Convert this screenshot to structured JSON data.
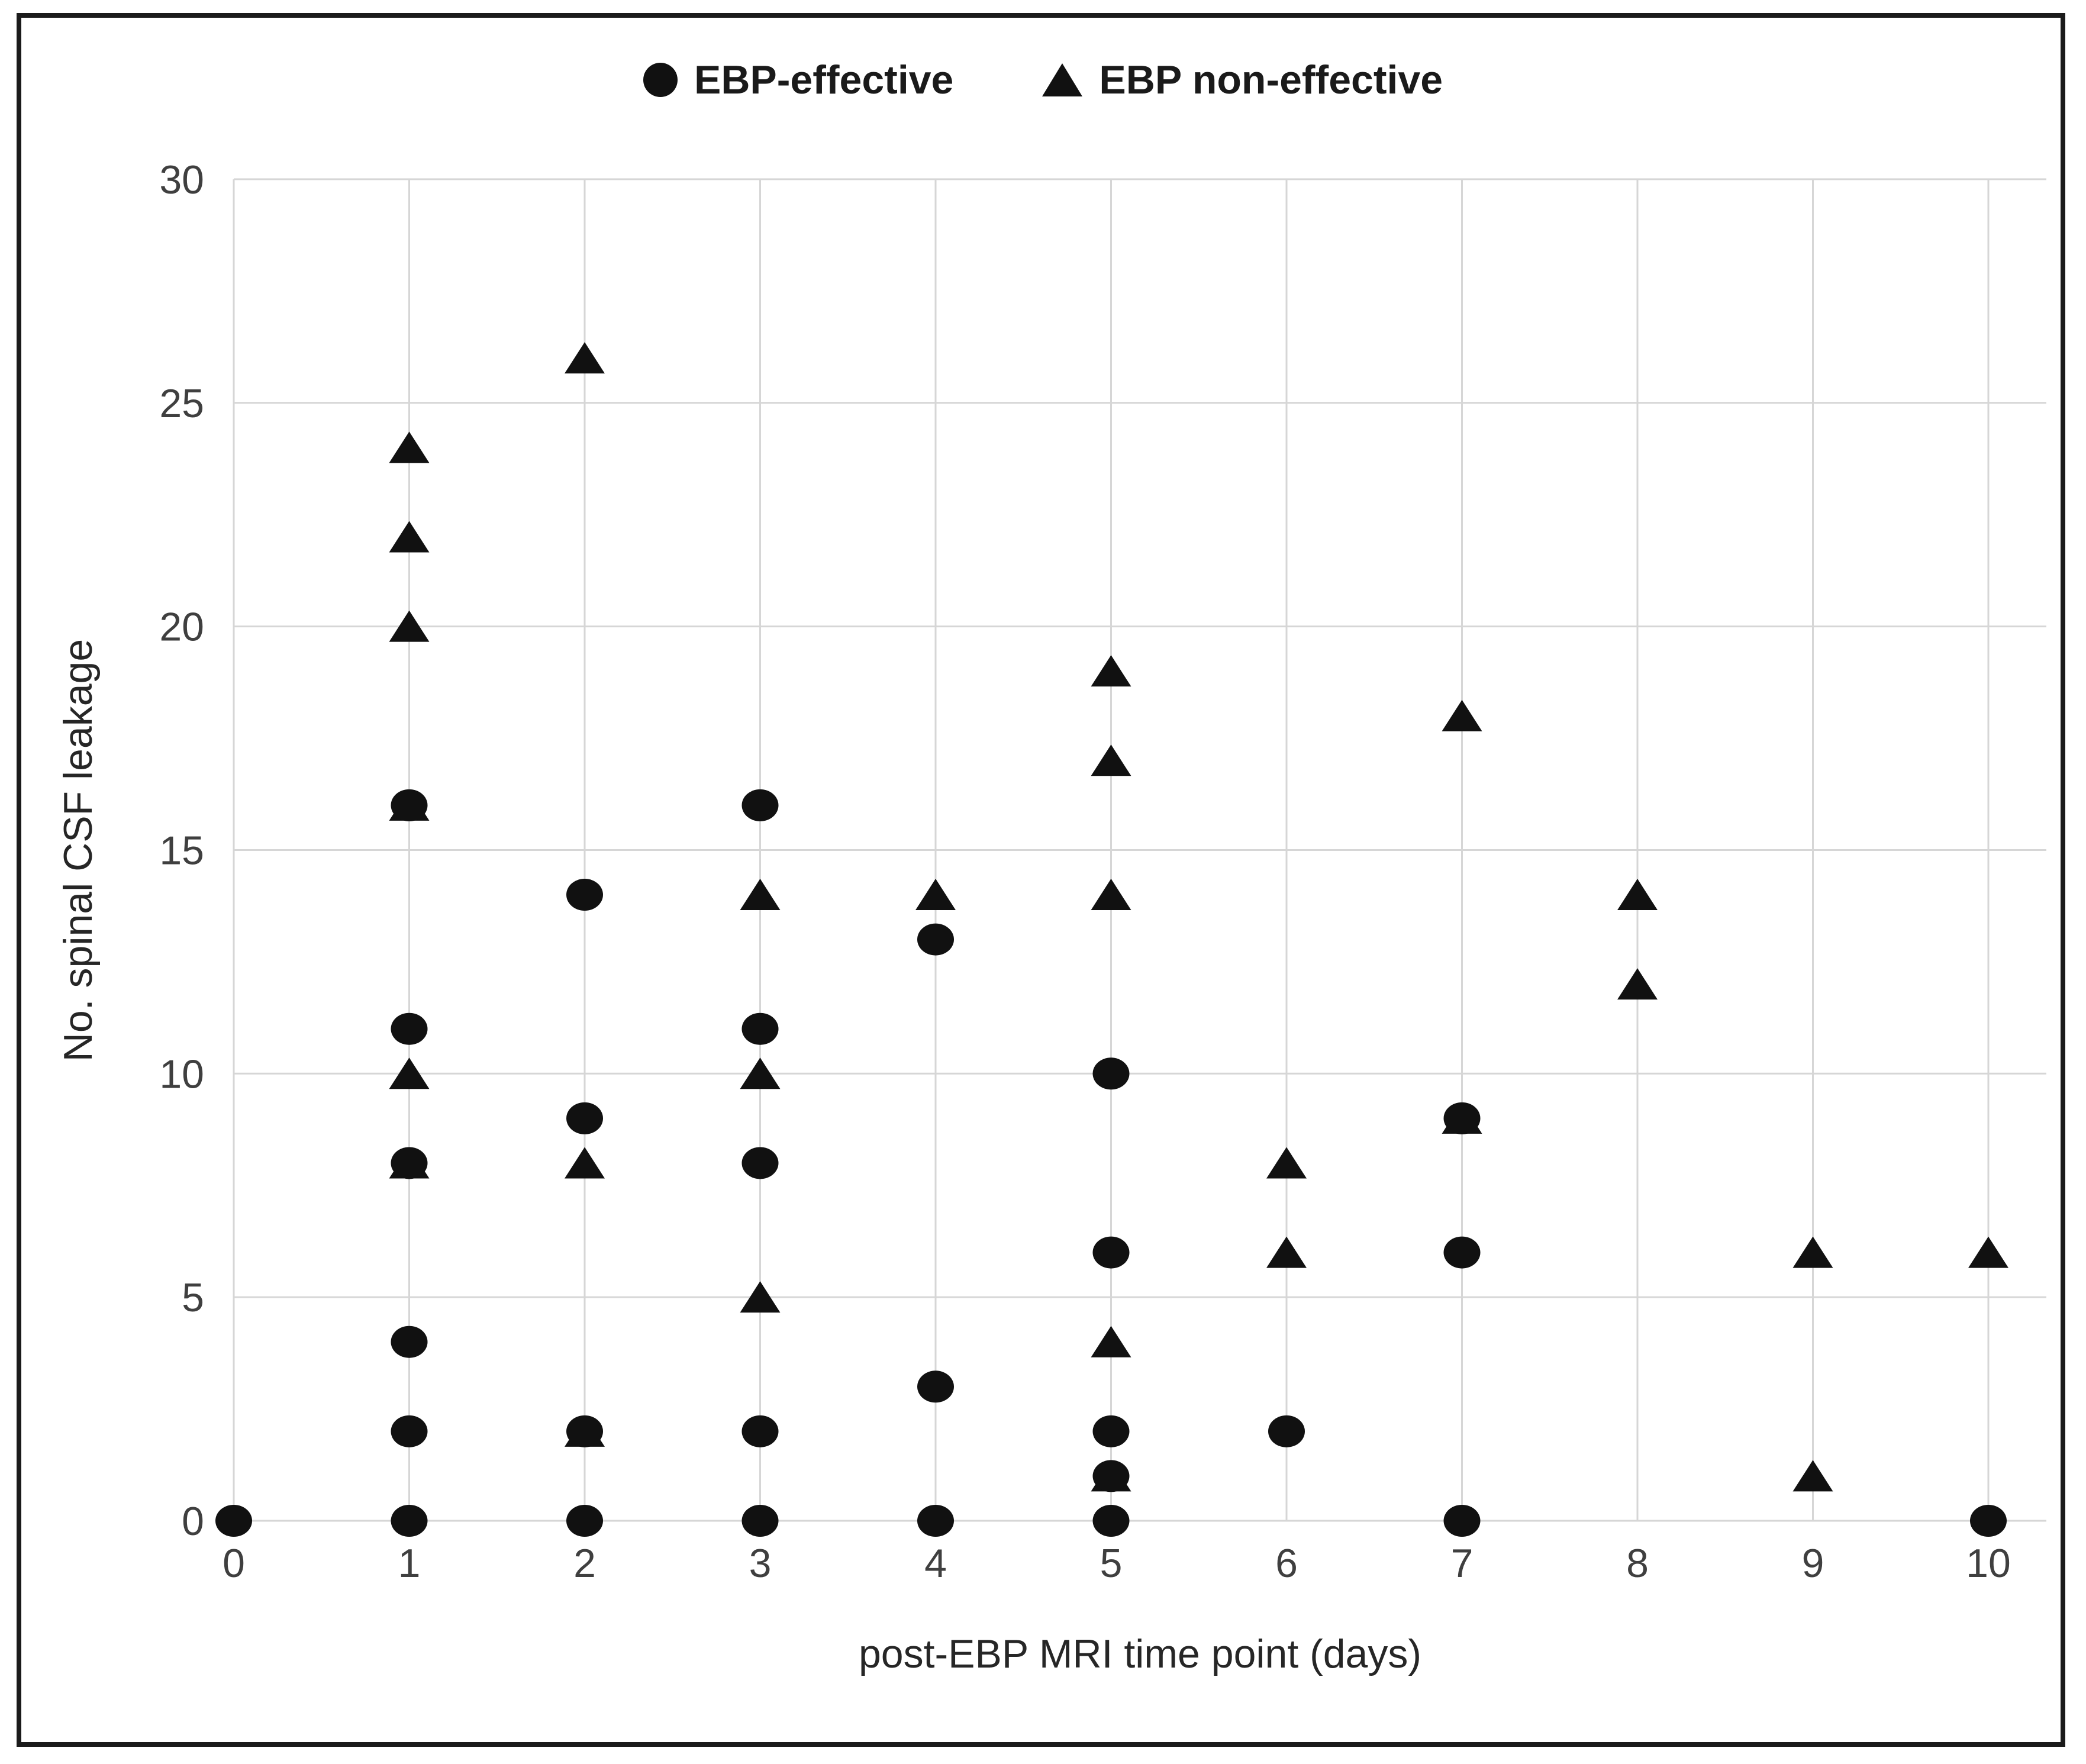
{
  "chart_data": {
    "type": "scatter",
    "title": "",
    "xlabel": "post-EBP MRI time point (days)",
    "ylabel": "No. spinal CSF leakage",
    "xlim": [
      0,
      10
    ],
    "ylim": [
      0,
      30
    ],
    "x_ticks": [
      0,
      1,
      2,
      3,
      4,
      5,
      6,
      7,
      8,
      9,
      10
    ],
    "y_ticks": [
      0,
      5,
      10,
      15,
      20,
      25,
      30
    ],
    "grid": true,
    "legend_position": "top-center",
    "marker_color": "#111111",
    "gridline_color": "#d6d6d6",
    "series": [
      {
        "name": "EBP non-effective",
        "marker": "triangle",
        "points": [
          [
            1,
            24
          ],
          [
            1,
            22
          ],
          [
            1,
            20
          ],
          [
            1,
            16
          ],
          [
            1,
            10
          ],
          [
            1,
            8
          ],
          [
            2,
            26
          ],
          [
            2,
            8
          ],
          [
            2,
            2
          ],
          [
            3,
            14
          ],
          [
            3,
            10
          ],
          [
            3,
            5
          ],
          [
            4,
            14
          ],
          [
            5,
            19
          ],
          [
            5,
            17
          ],
          [
            5,
            14
          ],
          [
            5,
            4
          ],
          [
            5,
            1
          ],
          [
            6,
            8
          ],
          [
            6,
            6
          ],
          [
            7,
            18
          ],
          [
            7,
            9
          ],
          [
            8,
            14
          ],
          [
            8,
            12
          ],
          [
            9,
            6
          ],
          [
            9,
            1
          ],
          [
            10,
            6
          ]
        ]
      },
      {
        "name": "EBP-effective",
        "marker": "circle",
        "points": [
          [
            0,
            0
          ],
          [
            1,
            16
          ],
          [
            1,
            11
          ],
          [
            1,
            8
          ],
          [
            1,
            4
          ],
          [
            1,
            2
          ],
          [
            1,
            0
          ],
          [
            2,
            14
          ],
          [
            2,
            9
          ],
          [
            2,
            2
          ],
          [
            2,
            0
          ],
          [
            3,
            16
          ],
          [
            3,
            11
          ],
          [
            3,
            8
          ],
          [
            3,
            2
          ],
          [
            3,
            0
          ],
          [
            4,
            13
          ],
          [
            4,
            3
          ],
          [
            4,
            0
          ],
          [
            5,
            10
          ],
          [
            5,
            6
          ],
          [
            5,
            2
          ],
          [
            5,
            1
          ],
          [
            5,
            0
          ],
          [
            6,
            2
          ],
          [
            7,
            9
          ],
          [
            7,
            6
          ],
          [
            7,
            0
          ],
          [
            10,
            0
          ]
        ]
      }
    ]
  }
}
